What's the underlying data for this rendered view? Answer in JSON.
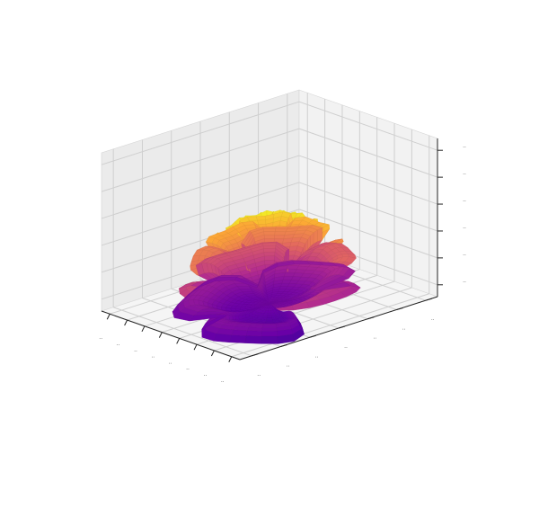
{
  "chart_data": {
    "type": "surface3d",
    "title": "",
    "xlabel": "",
    "ylabel": "",
    "zlabel": "",
    "colormap": "plasma",
    "colormap_stops": [
      "#0d0887",
      "#6a00a8",
      "#b12a90",
      "#e16462",
      "#fca636",
      "#f0f921"
    ],
    "pane_color": "#f2f2f2",
    "grid": true,
    "x_tick_count": 8,
    "y_tick_count": 7,
    "z_tick_count": 6,
    "x_tick_labels": [
      "..",
      "..",
      "..",
      "..",
      "..",
      "..",
      "..",
      ".."
    ],
    "y_tick_labels": [
      "..",
      "..",
      "..",
      "..",
      "..",
      "..",
      ".."
    ],
    "z_tick_labels": [
      "..",
      "..",
      "..",
      "..",
      "..",
      ".."
    ],
    "surface": {
      "shape": "rose",
      "r_range": [
        0,
        1
      ],
      "theta_revolutions": 20,
      "petals_per_revolution": 3.6
    }
  }
}
